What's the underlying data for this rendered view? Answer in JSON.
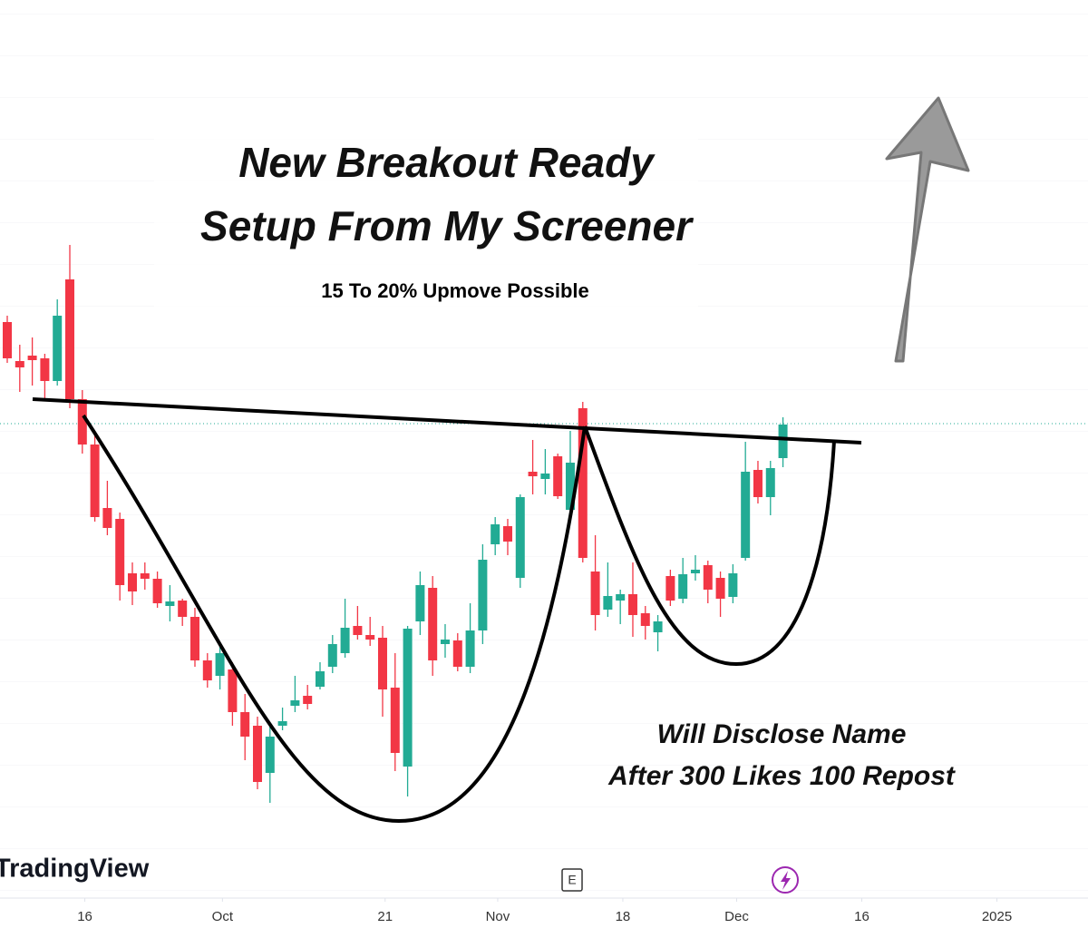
{
  "chart_data": {
    "type": "candlestick",
    "title": "New Breakout Ready",
    "title_line2": "Setup From My Screener",
    "subtitle": "15 To 20% Upmove Possible",
    "annotations": [
      "Will Disclose Name",
      "After 300 Likes 100 Repost"
    ],
    "brand": "TradingView",
    "event_marker": "E",
    "up_color": "#22ab94",
    "down_color": "#f23645",
    "ylim": [
      0,
      100
    ],
    "xlim": [
      -0.58,
      86.38
    ],
    "xticks": [
      {
        "value": 6.2,
        "label": "16"
      },
      {
        "value": 17.2,
        "label": "Oct"
      },
      {
        "value": 30.2,
        "label": "21"
      },
      {
        "value": 39.2,
        "label": "Nov"
      },
      {
        "value": 49.2,
        "label": "18"
      },
      {
        "value": 58.3,
        "label": "Dec"
      },
      {
        "value": 68.3,
        "label": "16"
      },
      {
        "value": 79.1,
        "label": "2025"
      }
    ],
    "open": [
      64.5,
      60.2,
      60.8,
      60.5,
      58,
      69.2,
      56,
      51,
      44,
      42.8,
      36.8,
      36.8,
      36.2,
      33.2,
      33.8,
      32,
      27.2,
      25.5,
      26.2,
      21.5,
      20,
      14.8,
      20,
      22.2,
      23.3,
      24.3,
      26.5,
      28,
      31,
      30,
      29.7,
      24.2,
      15.5,
      31.5,
      35.2,
      29,
      29.4,
      26.5,
      30.5,
      40,
      42,
      36.3,
      48,
      47.2,
      49.7,
      43.8,
      55,
      37,
      32.8,
      33.8,
      34.5,
      32.4,
      30.3,
      36.5,
      34,
      36.8,
      37.7,
      36.3,
      34.2,
      38.5,
      48.2,
      45.2,
      49.5
    ],
    "high": [
      65.2,
      62,
      62.8,
      61,
      67,
      73,
      57,
      52,
      47,
      43.5,
      38,
      38,
      37,
      35.5,
      34,
      33,
      28,
      29,
      27,
      23.5,
      21,
      20,
      22,
      25.5,
      24.5,
      27,
      30,
      34,
      33.2,
      32,
      31,
      28,
      31,
      37,
      36.5,
      31.2,
      30.2,
      33.5,
      40,
      43,
      42.8,
      45.5,
      51.5,
      50.5,
      50,
      52.5,
      55.7,
      41,
      38,
      35,
      38,
      33.2,
      32.2,
      37.2,
      38.5,
      38.8,
      38.2,
      37,
      37.8,
      51.3,
      49.2,
      49.2,
      54
    ],
    "low": [
      60,
      56.8,
      57.5,
      56,
      57.5,
      55,
      50,
      42.5,
      41,
      33.8,
      33.3,
      35,
      33,
      31.5,
      31,
      26.5,
      24.2,
      24,
      20,
      16.2,
      13,
      11.5,
      19.5,
      21.5,
      21.8,
      24,
      25.8,
      27.5,
      29.5,
      28.8,
      21,
      15,
      12.2,
      30,
      25.5,
      27.5,
      26,
      25.8,
      29,
      38.8,
      38.8,
      35.2,
      45.5,
      45.5,
      45,
      43.5,
      38,
      30.5,
      32,
      31.2,
      29.8,
      29.5,
      28.2,
      33.2,
      33.5,
      36,
      33.5,
      32,
      33.5,
      38.2,
      44.5,
      43.2,
      48.5
    ],
    "close": [
      60.5,
      59.5,
      60.3,
      58,
      65.2,
      56,
      51,
      43,
      41.8,
      35.5,
      34.8,
      36.2,
      33.5,
      33.7,
      32,
      27.2,
      25,
      28,
      21.5,
      18.8,
      13.8,
      18.8,
      20.5,
      22.8,
      22.4,
      26,
      29,
      30.8,
      30,
      29.5,
      24,
      17,
      30.7,
      35.5,
      27.2,
      29.5,
      26.5,
      30.5,
      38.3,
      42.2,
      40.3,
      45.2,
      47.5,
      47.8,
      45.3,
      49,
      38.5,
      32.2,
      34.3,
      34.5,
      32.2,
      31,
      31.5,
      33.8,
      36.7,
      37.2,
      35,
      34,
      36.8,
      48,
      45.2,
      48.4,
      53.2
    ]
  }
}
